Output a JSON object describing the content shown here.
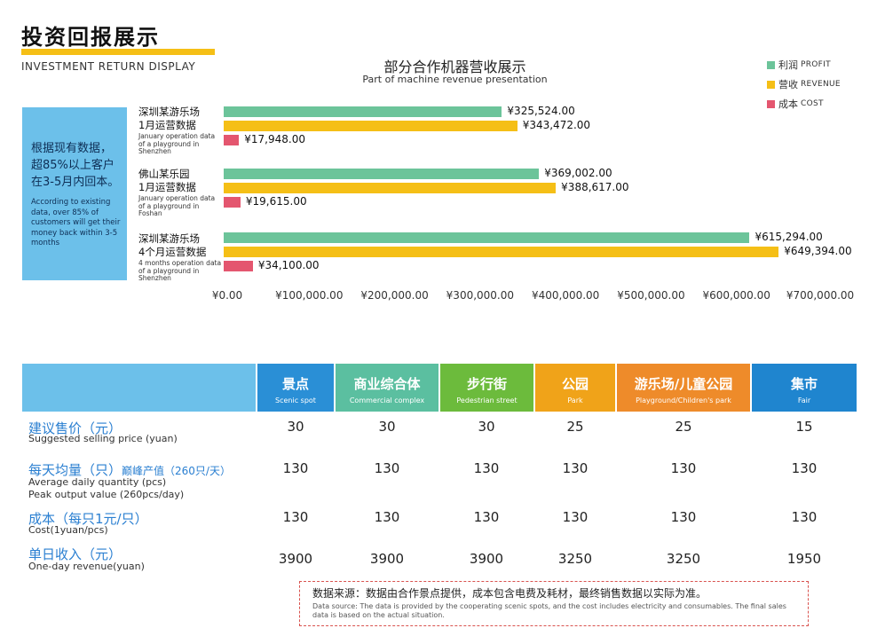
{
  "header": {
    "title_cn": "投资回报展示",
    "title_en": "INVESTMENT RETURN DISPLAY",
    "accent": "#f5bf16"
  },
  "chart_data": {
    "type": "bar",
    "orientation": "horizontal",
    "title": "部分合作机器营收展示",
    "subtitle": "Part of machine revenue presentation",
    "categories": [
      {
        "cn": "深圳某游乐场",
        "cn2": "1月运营数据",
        "en": "January operation data of a playground in Shenzhen"
      },
      {
        "cn": "佛山某乐园",
        "cn2": "1月运营数据",
        "en": "January operation data of a playground in Foshan"
      },
      {
        "cn": "深圳某游乐场",
        "cn2": "4个月运营数据",
        "en": "4 months operation data of a playground in Shenzhen"
      }
    ],
    "series": [
      {
        "name": "利润",
        "name_en": "PROFIT",
        "color": "#6cc49a",
        "values": [
          325524,
          369002,
          615294
        ],
        "labels": [
          "¥325,524.00",
          "¥369,002.00",
          "¥615,294.00"
        ]
      },
      {
        "name": "营收",
        "name_en": "REVENUE",
        "color": "#f5bf16",
        "values": [
          343472,
          388617,
          649394
        ],
        "labels": [
          "¥343,472.00",
          "¥388,617.00",
          "¥649,394.00"
        ]
      },
      {
        "name": "成本",
        "name_en": "COST",
        "color": "#e4566f",
        "values": [
          17948,
          19615,
          34100
        ],
        "labels": [
          "¥17,948.00",
          "¥19,615.00",
          "¥34,100.00"
        ]
      }
    ],
    "xlim": [
      0,
      700000
    ],
    "ticks": [
      "¥0.00",
      "¥100,000.00",
      "¥200,000.00",
      "¥300,000.00",
      "¥400,000.00",
      "¥500,000.00",
      "¥600,000.00",
      "¥700,000.00"
    ],
    "tick_values": [
      0,
      100000,
      200000,
      300000,
      400000,
      500000,
      600000,
      700000
    ],
    "legend": "top-right",
    "grid": false
  },
  "note": {
    "cn": "根据现有数据，超85%以上客户在3-5月内回本。",
    "en": "According to existing data, over 85% of customers will get their money back within 3-5 months",
    "color": "#6cc0ea"
  },
  "table": {
    "columns": [
      {
        "cn": "景点",
        "en": "Scenic spot",
        "color": "#2a8fd6"
      },
      {
        "cn": "商业综合体",
        "en": "Commercial complex",
        "color": "#5bbfa0"
      },
      {
        "cn": "步行街",
        "en": "Pedestrian street",
        "color": "#6cbb3c"
      },
      {
        "cn": "公园",
        "en": "Park",
        "color": "#f0a319"
      },
      {
        "cn": "游乐场/儿童公园",
        "en": "Playground/Children's park",
        "color": "#ee8b2a"
      },
      {
        "cn": "集市",
        "en": "Fair",
        "color": "#1f85cf"
      }
    ],
    "header_bg": "#6cc0ea",
    "rows": [
      {
        "cn": "建议售价（元）",
        "en": "Suggested selling price (yuan)",
        "values": [
          "30",
          "30",
          "30",
          "25",
          "25",
          "15"
        ]
      },
      {
        "cn": "每天均量（只）",
        "cn_extra": "巅峰产值（260只/天）",
        "en": "Average daily quantity (pcs)",
        "en2": "Peak output value (260pcs/day)",
        "values": [
          "130",
          "130",
          "130",
          "130",
          "130",
          "130"
        ]
      },
      {
        "cn": "成本（每只1元/只）",
        "en": "Cost(1yuan/pcs)",
        "values": [
          "130",
          "130",
          "130",
          "130",
          "130",
          "130"
        ]
      },
      {
        "cn": "单日收入（元）",
        "en": "One-day revenue(yuan)",
        "values": [
          "3900",
          "3900",
          "3900",
          "3250",
          "3250",
          "1950"
        ]
      }
    ]
  },
  "footnote": {
    "cn": "数据来源：数据由合作景点提供，成本包含电费及耗材，最终销售数据以实际为准。",
    "en": "Data source: The data is provided by the cooperating scenic spots, and the cost includes electricity and consumables. The final sales data is based on the actual situation.",
    "border_color": "#d9534f"
  }
}
